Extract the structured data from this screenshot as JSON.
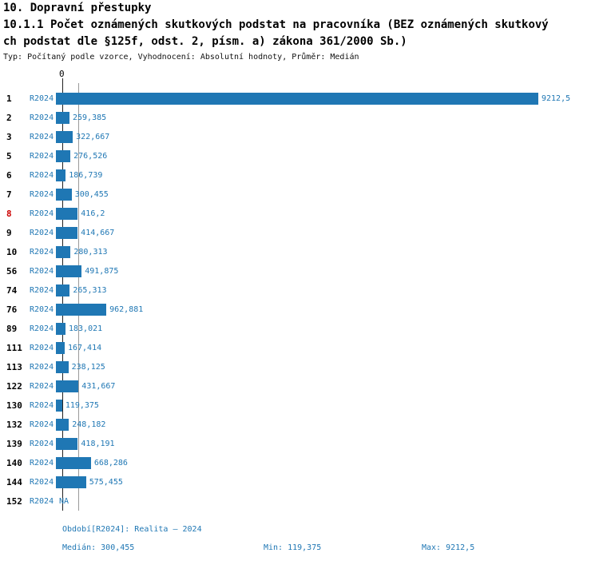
{
  "title": "10. Dopravní přestupky",
  "subtitle_line1": "10.1.1 Počet oznámených skutkových podstat na pracovníka (BEZ oznámených skutkový",
  "subtitle_line2": "ch podstat dle §125f, odst. 2, písm. a) zákona 361/2000 Sb.)",
  "meta": "Typ: Počítaný podle vzorce, Vyhodnocení: Absolutní hodnoty, Průměr: Medián",
  "chart_data": {
    "type": "bar",
    "orientation": "horizontal",
    "title": "10.1.1 Počet oznámených skutkových podstat na pracovníka (BEZ oznámených skutkových podstat dle §125f, odst. 2, písm. a) zákona 361/2000 Sb.)",
    "axis_origin_label": "0",
    "period_label": "R2024",
    "categories": [
      "1",
      "2",
      "3",
      "5",
      "6",
      "7",
      "8",
      "9",
      "10",
      "56",
      "74",
      "76",
      "89",
      "111",
      "113",
      "122",
      "130",
      "132",
      "139",
      "140",
      "144",
      "152"
    ],
    "values": [
      9212.5,
      259.385,
      322.667,
      276.526,
      186.739,
      300.455,
      416.2,
      414.667,
      280.313,
      491.875,
      265.313,
      962.881,
      183.021,
      167.414,
      238.125,
      431.667,
      119.375,
      248.182,
      418.191,
      668.286,
      575.455,
      null
    ],
    "value_labels": [
      "9212,5",
      "259,385",
      "322,667",
      "276,526",
      "186,739",
      "300,455",
      "416,2",
      "414,667",
      "280,313",
      "491,875",
      "265,313",
      "962,881",
      "183,021",
      "167,414",
      "238,125",
      "431,667",
      "119,375",
      "248,182",
      "418,191",
      "668,286",
      "575,455",
      "NA"
    ],
    "highlighted_category": "8",
    "xlim": [
      0,
      9212.5
    ],
    "median_line": 300.455,
    "grid": false,
    "legend": false
  },
  "footer": {
    "period": "Období[R2024]: Realita – 2024",
    "median": "Medián: 300,455",
    "min": "Min: 119,375",
    "max": "Max: 9212,5"
  },
  "colors": {
    "bar": "#1f77b4",
    "text_blue": "#1f77b4",
    "highlight_red": "#cc0000",
    "axis": "#222222",
    "median_line": "#9a9a9a"
  }
}
